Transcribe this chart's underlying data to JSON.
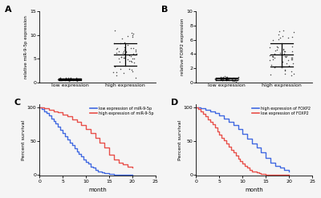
{
  "panel_A": {
    "label": "A",
    "ylabel": "relative miR-9-5p expression",
    "ylim": [
      0,
      15
    ],
    "yticks": [
      0,
      5,
      10,
      15
    ],
    "categories": [
      "low expression",
      "high expression"
    ],
    "low_mean": 0.75,
    "low_sd": 0.18,
    "high_mean": 6.0,
    "high_sd": 2.2,
    "low_n": 55,
    "high_n": 55,
    "low_seed": 42,
    "high_seed": 7
  },
  "panel_B": {
    "label": "B",
    "ylabel": "relative FOXP2 expression",
    "ylim": [
      0,
      10
    ],
    "yticks": [
      0,
      2,
      4,
      6,
      8,
      10
    ],
    "categories": [
      "low expression",
      "high expression"
    ],
    "low_mean": 0.5,
    "low_sd": 0.18,
    "high_mean": 4.0,
    "high_sd": 1.6,
    "low_n": 50,
    "high_n": 55,
    "low_seed": 10,
    "high_seed": 15
  },
  "panel_C": {
    "label": "C",
    "xlabel": "month",
    "ylabel": "Percent survival",
    "xlim": [
      0,
      25
    ],
    "ylim": [
      -2,
      105
    ],
    "yticks": [
      0,
      50,
      100
    ],
    "xticks": [
      0,
      5,
      10,
      15,
      20,
      25
    ],
    "legend": [
      "low expression of miR-9-5p",
      "high expression of miR-9-5p"
    ],
    "colors": [
      "#4169E1",
      "#E8504A"
    ],
    "low_times": [
      0,
      0.5,
      1,
      1.5,
      2,
      2.5,
      3,
      3.5,
      4,
      4.5,
      5,
      5.5,
      6,
      6.5,
      7,
      7.5,
      8,
      8.5,
      9,
      9.5,
      10,
      10.5,
      11,
      11.5,
      12,
      12.5,
      13,
      13.5,
      14,
      14.5,
      15,
      15.5,
      16,
      17,
      18,
      19,
      19.5,
      20
    ],
    "low_surv": [
      100,
      98,
      95,
      92,
      88,
      84,
      80,
      76,
      72,
      67,
      62,
      57,
      53,
      48,
      44,
      39,
      35,
      31,
      27,
      23,
      19,
      16,
      12,
      10,
      7,
      5,
      4,
      3,
      2,
      1.5,
      1,
      0.5,
      0,
      0,
      0,
      0,
      0,
      0
    ],
    "high_times": [
      0,
      1,
      2,
      3,
      4,
      5,
      6,
      7,
      8,
      9,
      10,
      11,
      12,
      13,
      14,
      15,
      16,
      17,
      18,
      19,
      20
    ],
    "high_surv": [
      100,
      99,
      97,
      95,
      93,
      90,
      87,
      83,
      79,
      74,
      68,
      62,
      55,
      48,
      40,
      30,
      22,
      18,
      15,
      12,
      10
    ]
  },
  "panel_D": {
    "label": "D",
    "xlabel": "month",
    "ylabel": "Percent survival",
    "xlim": [
      0,
      25
    ],
    "ylim": [
      -2,
      105
    ],
    "yticks": [
      0,
      50,
      100
    ],
    "xticks": [
      0,
      5,
      10,
      15,
      20,
      25
    ],
    "legend": [
      "high expression of FOXP2",
      "low expression of FOXP2"
    ],
    "colors": [
      "#4169E1",
      "#E8504A"
    ],
    "high_times": [
      0,
      1,
      2,
      3,
      4,
      5,
      6,
      7,
      8,
      9,
      10,
      11,
      12,
      13,
      14,
      15,
      16,
      17,
      18,
      19,
      20
    ],
    "high_surv": [
      100,
      99,
      97,
      95,
      92,
      88,
      84,
      79,
      74,
      68,
      61,
      54,
      47,
      40,
      33,
      25,
      18,
      13,
      10,
      7,
      5
    ],
    "low_times": [
      0,
      0.5,
      1,
      1.5,
      2,
      2.5,
      3,
      3.5,
      4,
      4.5,
      5,
      5.5,
      6,
      6.5,
      7,
      7.5,
      8,
      8.5,
      9,
      9.5,
      10,
      10.5,
      11,
      11.5,
      12,
      12.5,
      13,
      13.5,
      14,
      14.5,
      15,
      16,
      17,
      18,
      19,
      20
    ],
    "low_surv": [
      100,
      98,
      95,
      91,
      87,
      83,
      79,
      75,
      70,
      65,
      60,
      55,
      51,
      46,
      42,
      37,
      33,
      28,
      24,
      20,
      16,
      13,
      10,
      7,
      5,
      4,
      3,
      2,
      1,
      0.5,
      0,
      0,
      0,
      0,
      0,
      0
    ]
  },
  "dot_color": "#404040",
  "fig_bg": "#f5f5f5"
}
